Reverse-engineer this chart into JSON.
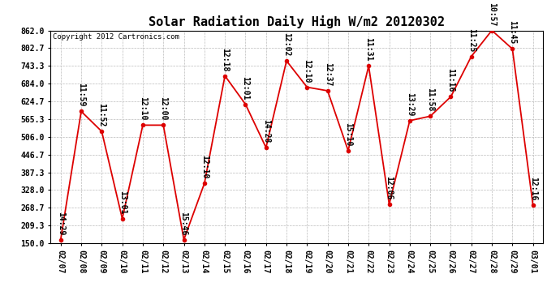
{
  "title": "Solar Radiation Daily High W/m2 20120302",
  "copyright": "Copyright 2012 Cartronics.com",
  "dates": [
    "02/07",
    "02/08",
    "02/09",
    "02/10",
    "02/11",
    "02/12",
    "02/13",
    "02/14",
    "02/15",
    "02/16",
    "02/17",
    "02/18",
    "02/19",
    "02/20",
    "02/21",
    "02/22",
    "02/23",
    "02/24",
    "02/25",
    "02/26",
    "02/27",
    "02/28",
    "02/29",
    "03/01"
  ],
  "values": [
    162,
    591,
    524,
    232,
    545,
    545,
    162,
    350,
    710,
    615,
    470,
    760,
    672,
    660,
    460,
    743,
    280,
    560,
    575,
    640,
    775,
    862,
    800,
    278
  ],
  "times": [
    "14:29",
    "11:59",
    "11:52",
    "13:01",
    "12:10",
    "12:00",
    "15:46",
    "12:10",
    "12:18",
    "12:01",
    "14:28",
    "12:02",
    "12:10",
    "12:37",
    "15:10",
    "11:31",
    "12:06",
    "13:29",
    "11:58",
    "11:16",
    "11:25",
    "10:57",
    "11:45",
    "12:16"
  ],
  "ylim": [
    150,
    862
  ],
  "yticks": [
    150.0,
    209.3,
    268.7,
    328.0,
    387.3,
    446.7,
    506.0,
    565.3,
    624.7,
    684.0,
    743.3,
    802.7,
    862.0
  ],
  "line_color": "#dd0000",
  "marker_color": "#dd0000",
  "bg_color": "#ffffff",
  "grid_color": "#bbbbbb",
  "title_fontsize": 11,
  "label_fontsize": 7,
  "tick_fontsize": 7,
  "copyright_fontsize": 6.5,
  "figwidth": 6.9,
  "figheight": 3.75,
  "dpi": 100
}
